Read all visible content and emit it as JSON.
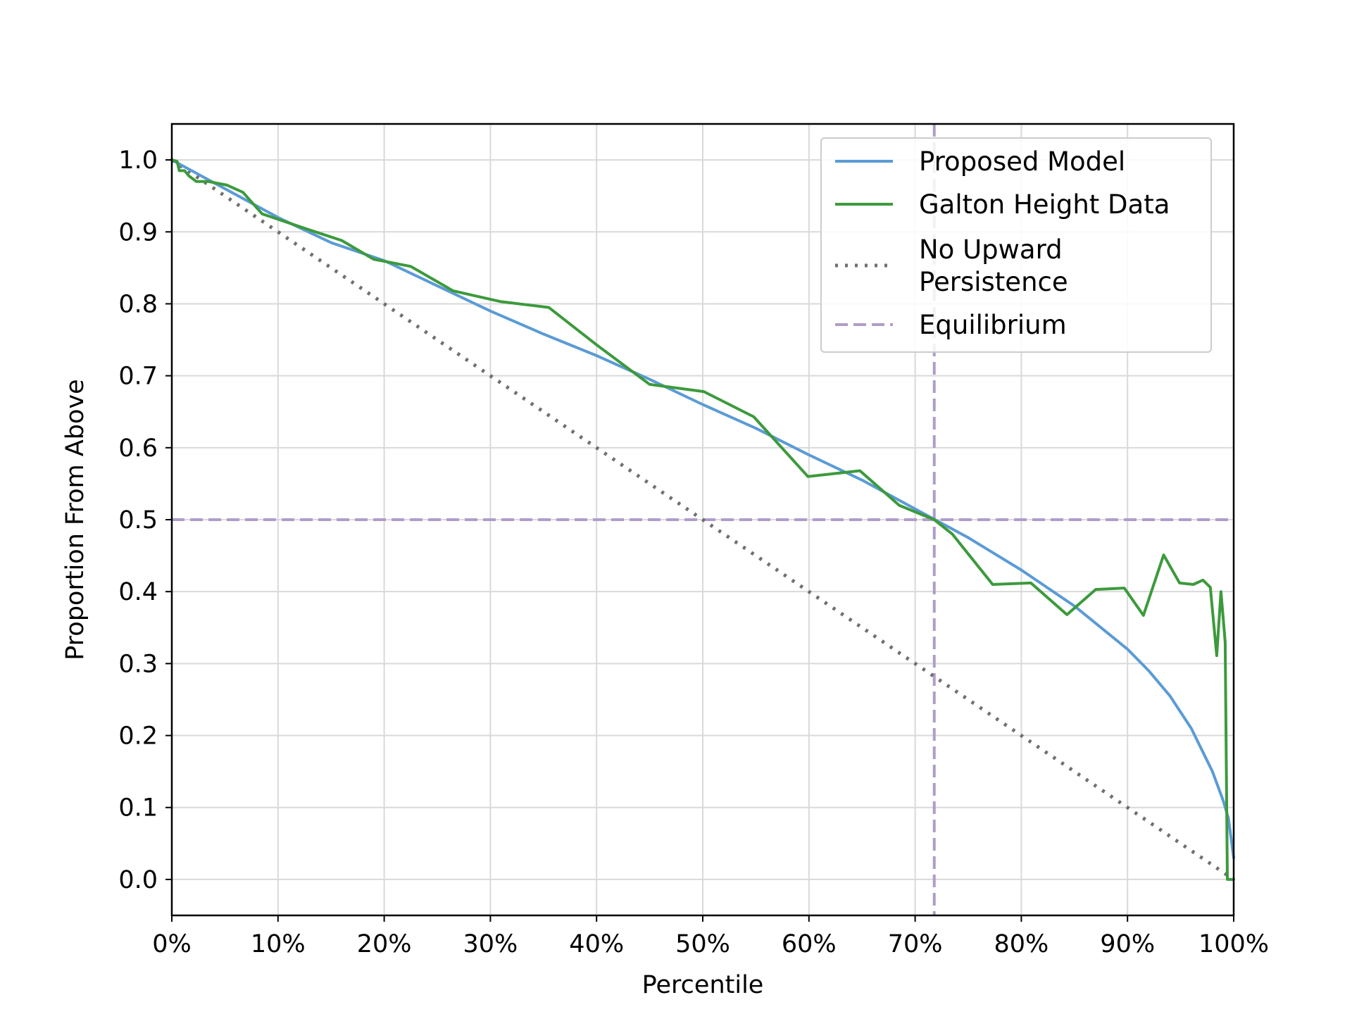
{
  "chart_data": {
    "type": "line",
    "title": "",
    "xlabel": "Percentile",
    "ylabel": "Proportion From Above",
    "xlim": [
      0,
      100
    ],
    "ylim": [
      -0.05,
      1.05
    ],
    "grid": true,
    "legend_position": "upper-right",
    "x_ticks": [
      {
        "value": 0,
        "label": "0%"
      },
      {
        "value": 10,
        "label": "10%"
      },
      {
        "value": 20,
        "label": "20%"
      },
      {
        "value": 30,
        "label": "30%"
      },
      {
        "value": 40,
        "label": "40%"
      },
      {
        "value": 50,
        "label": "50%"
      },
      {
        "value": 60,
        "label": "60%"
      },
      {
        "value": 70,
        "label": "70%"
      },
      {
        "value": 80,
        "label": "80%"
      },
      {
        "value": 90,
        "label": "90%"
      },
      {
        "value": 100,
        "label": "100%"
      }
    ],
    "y_ticks": [
      {
        "value": 0.0,
        "label": "0.0"
      },
      {
        "value": 0.1,
        "label": "0.1"
      },
      {
        "value": 0.2,
        "label": "0.2"
      },
      {
        "value": 0.3,
        "label": "0.3"
      },
      {
        "value": 0.4,
        "label": "0.4"
      },
      {
        "value": 0.5,
        "label": "0.5"
      },
      {
        "value": 0.6,
        "label": "0.6"
      },
      {
        "value": 0.7,
        "label": "0.7"
      },
      {
        "value": 0.8,
        "label": "0.8"
      },
      {
        "value": 0.9,
        "label": "0.9"
      },
      {
        "value": 1.0,
        "label": "1.0"
      }
    ],
    "series": [
      {
        "name": "Proposed Model",
        "color": "#5b9bd5",
        "style": "solid",
        "x": [
          0,
          5,
          10,
          15,
          20,
          25,
          30,
          35,
          40,
          45,
          50,
          55,
          60,
          65,
          70,
          75,
          80,
          85,
          90,
          92,
          94,
          96,
          97,
          98,
          99,
          99.5,
          100
        ],
        "y": [
          1.0,
          0.96,
          0.92,
          0.885,
          0.86,
          0.825,
          0.79,
          0.758,
          0.728,
          0.695,
          0.66,
          0.627,
          0.59,
          0.555,
          0.515,
          0.475,
          0.43,
          0.38,
          0.32,
          0.29,
          0.255,
          0.21,
          0.18,
          0.15,
          0.11,
          0.085,
          0.03
        ]
      },
      {
        "name": "Galton Height Data",
        "color": "#3c9a3c",
        "style": "solid",
        "x": [
          0,
          0.5,
          0.7,
          1.2,
          1.6,
          2.3,
          3.4,
          5.2,
          6.7,
          8.5,
          12.5,
          16,
          19,
          22.5,
          26.5,
          31,
          35.5,
          40,
          45,
          50.1,
          54.8,
          59.9,
          64.8,
          68.5,
          71.8,
          73.5,
          77.3,
          80.9,
          84.3,
          87,
          89.7,
          91.5,
          93.4,
          94.9,
          96.2,
          97.1,
          97.8,
          98.4,
          98.8,
          99.2,
          99.4,
          100
        ],
        "y": [
          1.0,
          0.998,
          0.985,
          0.985,
          0.978,
          0.97,
          0.97,
          0.965,
          0.955,
          0.925,
          0.905,
          0.888,
          0.862,
          0.852,
          0.818,
          0.803,
          0.795,
          0.743,
          0.688,
          0.678,
          0.643,
          0.56,
          0.568,
          0.52,
          0.5,
          0.48,
          0.41,
          0.412,
          0.368,
          0.403,
          0.405,
          0.367,
          0.451,
          0.412,
          0.41,
          0.416,
          0.406,
          0.311,
          0.4,
          0.33,
          0.0,
          0.0
        ]
      },
      {
        "name": "No Upward Persistence",
        "color": "#707070",
        "style": "dotted",
        "x": [
          0,
          100
        ],
        "y": [
          1.0,
          0.0
        ]
      }
    ],
    "reference_lines": [
      {
        "name": "Equilibrium",
        "orientation": "horizontal",
        "value": 0.5,
        "color": "#b09dc9",
        "style": "dashed"
      },
      {
        "name": "Equilibrium",
        "orientation": "vertical",
        "value": 71.8,
        "color": "#b09dc9",
        "style": "dashed"
      }
    ],
    "legend": [
      {
        "label": "Proposed Model",
        "color": "#5b9bd5",
        "style": "solid"
      },
      {
        "label": "Galton Height Data",
        "color": "#3c9a3c",
        "style": "solid"
      },
      {
        "label": "No Upward\nPersistence",
        "color": "#707070",
        "style": "dotted"
      },
      {
        "label": "Equilibrium",
        "color": "#b09dc9",
        "style": "dashed"
      }
    ]
  }
}
